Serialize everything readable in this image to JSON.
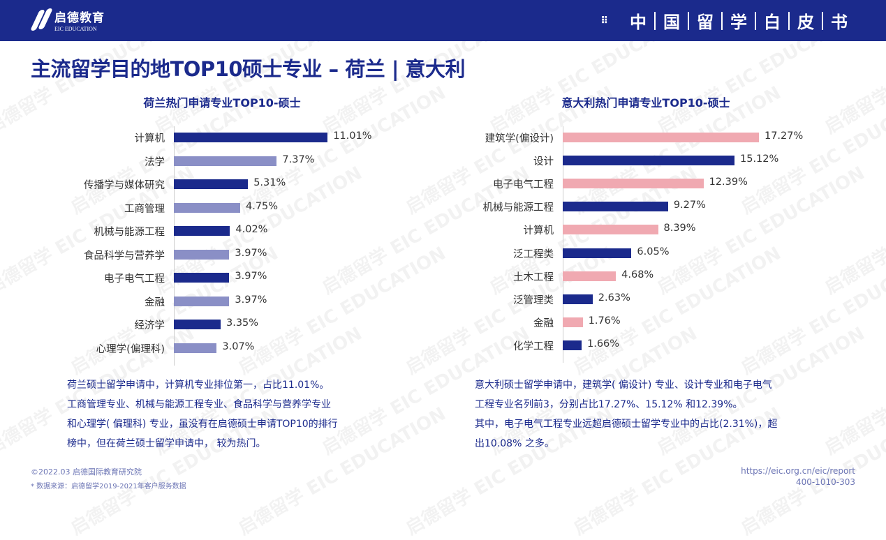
{
  "header": {
    "logo_cn": "启德教育",
    "logo_en": "EIC EDUCATION",
    "book_chars": [
      "中",
      "国",
      "留",
      "学",
      "白",
      "皮",
      "书"
    ]
  },
  "page_title": "主流留学目的地TOP10硕士专业 – 荷兰 | 意大利",
  "chart_data": [
    {
      "type": "bar",
      "orientation": "horizontal",
      "title": "荷兰热门申请专业TOP10-硕士",
      "categories": [
        "计算机",
        "法学",
        "传播学与媒体研究",
        "工商管理",
        "机械与能源工程",
        "食品科学与营养学",
        "电子电气工程",
        "金融",
        "经济学",
        "心理学(偏理科)"
      ],
      "values": [
        11.01,
        7.37,
        5.31,
        4.75,
        4.02,
        3.97,
        3.97,
        3.97,
        3.35,
        3.07
      ],
      "labels": [
        "11.01%",
        "7.37%",
        "5.31%",
        "4.75%",
        "4.02%",
        "3.97%",
        "3.97%",
        "3.97%",
        "3.35%",
        "3.07%"
      ],
      "colors": [
        "#1b2a8c",
        "#8a8fc6"
      ],
      "unit": "%"
    },
    {
      "type": "bar",
      "orientation": "horizontal",
      "title": "意大利热门申请专业TOP10-硕士",
      "categories": [
        "建筑学(偏设计)",
        "设计",
        "电子电气工程",
        "机械与能源工程",
        "计算机",
        "泛工程类",
        "土木工程",
        "泛管理类",
        "金融",
        "化学工程"
      ],
      "values": [
        17.27,
        15.12,
        12.39,
        9.27,
        8.39,
        6.05,
        4.68,
        2.63,
        1.76,
        1.66
      ],
      "labels": [
        "17.27%",
        "15.12%",
        "12.39%",
        "9.27%",
        "8.39%",
        "6.05%",
        "4.68%",
        "2.63%",
        "1.76%",
        "1.66%"
      ],
      "colors": [
        "#f0a9b1",
        "#1b2a8c"
      ],
      "unit": "%"
    }
  ],
  "left_text": [
    "荷兰硕士留学申请中，计算机专业排位第一，占比11.01%。",
    "工商管理专业、机械与能源工程专业、食品科学与营养学专业",
    "和心理学( 偏理科) 专业，虽没有在启德硕士申请TOP10的排行",
    "榜中，但在荷兰硕士留学申请中， 较为热门。"
  ],
  "right_text": [
    "意大利硕士留学申请中，建筑学( 偏设计) 专业、设计专业和电子电气",
    "工程专业名列前3，分别占比17.27%、15.12% 和12.39%。",
    "其中，电子电气工程专业远超启德硕士留学专业中的占比(2.31%)，超",
    "出10.08% 之多。"
  ],
  "footer": {
    "copyright": "©2022.03 启德国际教育研究院",
    "source": "* 数据来源：启德留学2019-2021年客户服务数据",
    "url": "https://eic.org.cn/eic/report",
    "phone": "400-1010-303"
  },
  "watermark": {
    "cn": "启德留学",
    "en": "EIC EDUCATION"
  }
}
